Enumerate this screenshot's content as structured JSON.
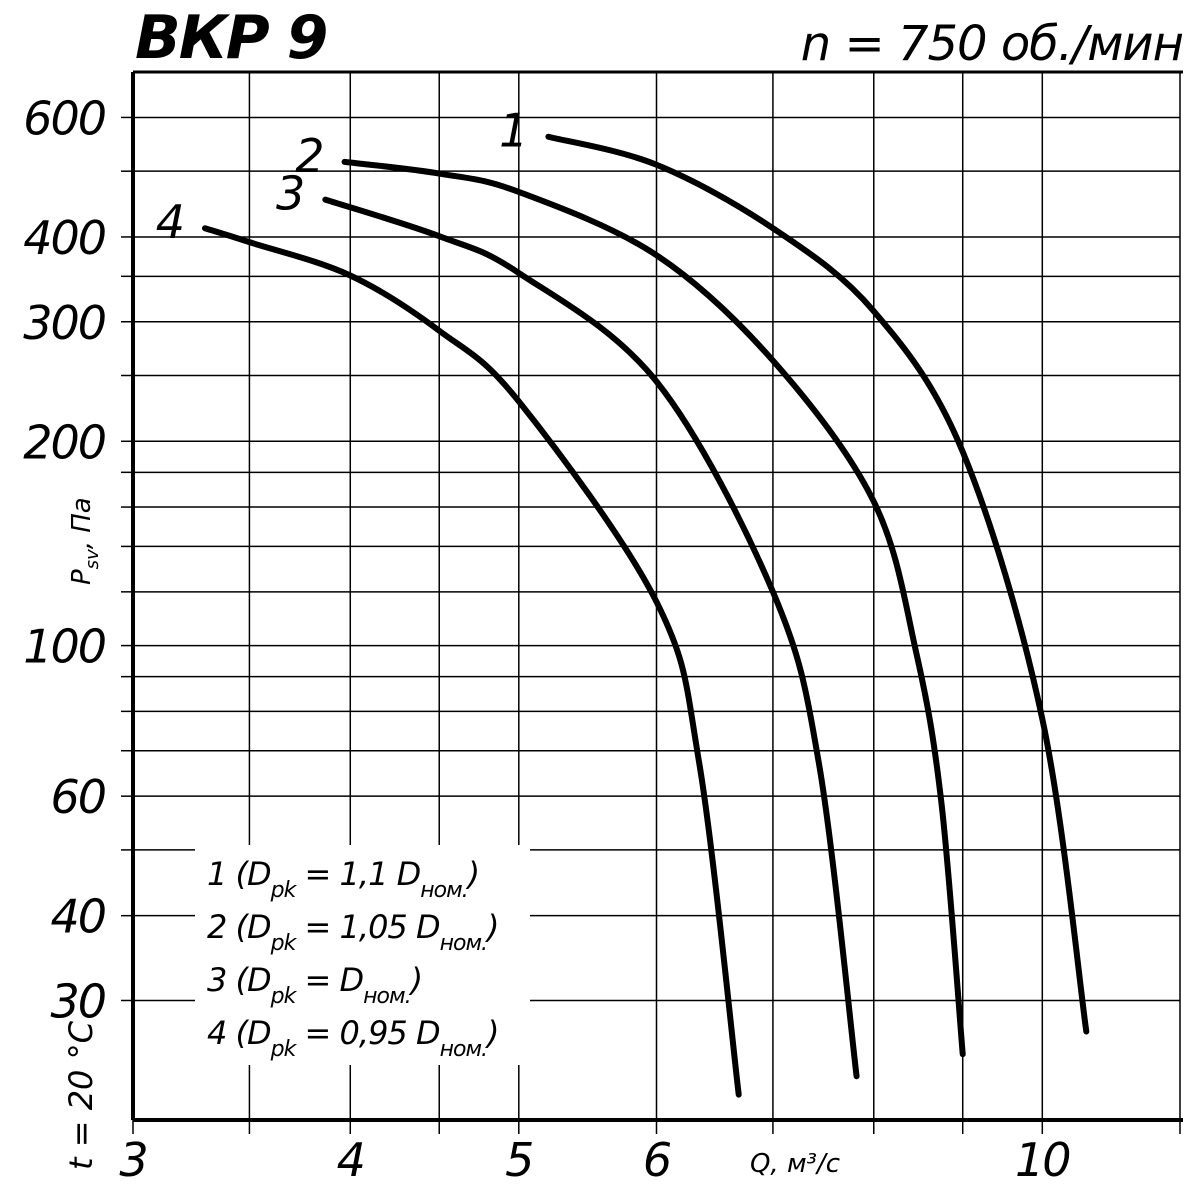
{
  "chart_data": {
    "type": "line",
    "title": "ВКР 9",
    "subtitle": "n = 750 об./мин",
    "x_label": "Q, м³/с",
    "y_label": [
      "P",
      "sv",
      ", Па"
    ],
    "annotation": "t = 20 °C",
    "xlog": true,
    "ylog": true,
    "grid": true,
    "xlim": [
      3,
      12
    ],
    "ylim": [
      20,
      700
    ],
    "xticks": [
      3,
      {
        "value": 3.5,
        "label": null
      },
      4,
      {
        "value": 4.5,
        "label": null
      },
      5,
      6,
      {
        "value": 7,
        "label": null
      },
      {
        "value": 8,
        "label": null
      },
      {
        "value": 9,
        "label": null
      },
      10,
      {
        "value": 12,
        "label": null
      }
    ],
    "yticks": [
      600,
      {
        "value": 500,
        "label": null
      },
      400,
      {
        "value": 350,
        "label": null
      },
      300,
      {
        "value": 250,
        "label": null
      },
      200,
      {
        "value": 180,
        "label": null
      },
      {
        "value": 160,
        "label": null
      },
      {
        "value": 140,
        "label": null
      },
      {
        "value": 120,
        "label": null
      },
      100,
      {
        "value": 90,
        "label": null
      },
      {
        "value": 80,
        "label": null
      },
      {
        "value": 70,
        "label": null
      },
      60,
      {
        "value": 50,
        "label": null
      },
      40,
      30
    ],
    "series": [
      {
        "name": "1",
        "color": "#000000",
        "x": [
          5.2,
          6,
          7,
          8,
          9,
          10,
          10.6
        ],
        "values": [
          562,
          511,
          412,
          311,
          193,
          78,
          27
        ]
      },
      {
        "name": "2",
        "color": "#000000",
        "x": [
          3.97,
          4.5,
          5,
          6,
          7,
          8,
          8.46,
          8.75,
          9
        ],
        "values": [
          516,
          496,
          466,
          376,
          263,
          163,
          98,
          58.6,
          25
        ]
      },
      {
        "name": "3",
        "color": "#000000",
        "x": [
          3.87,
          4.5,
          5,
          6,
          7,
          7.44,
          7.82
        ],
        "values": [
          454,
          401,
          354,
          245,
          120,
          67,
          23.2
        ]
      },
      {
        "name": "4",
        "color": "#000000",
        "x": [
          3.3,
          3.5,
          4,
          4.5,
          5,
          6,
          6.35,
          6.69
        ],
        "values": [
          412,
          393,
          351,
          291,
          229,
          116,
          67,
          21.8
        ]
      }
    ],
    "legend_lines": [
      [
        "1 (D",
        "pk",
        " = 1,1 D",
        "ном.",
        ")"
      ],
      [
        "2 (D",
        "pk",
        " = 1,05 D",
        "ном.",
        ")"
      ],
      [
        "3 (D",
        "pk",
        " = D",
        "ном.",
        ")"
      ],
      [
        "4 (D",
        "pk",
        " = 0,95 D",
        "ном.",
        ")"
      ]
    ]
  }
}
